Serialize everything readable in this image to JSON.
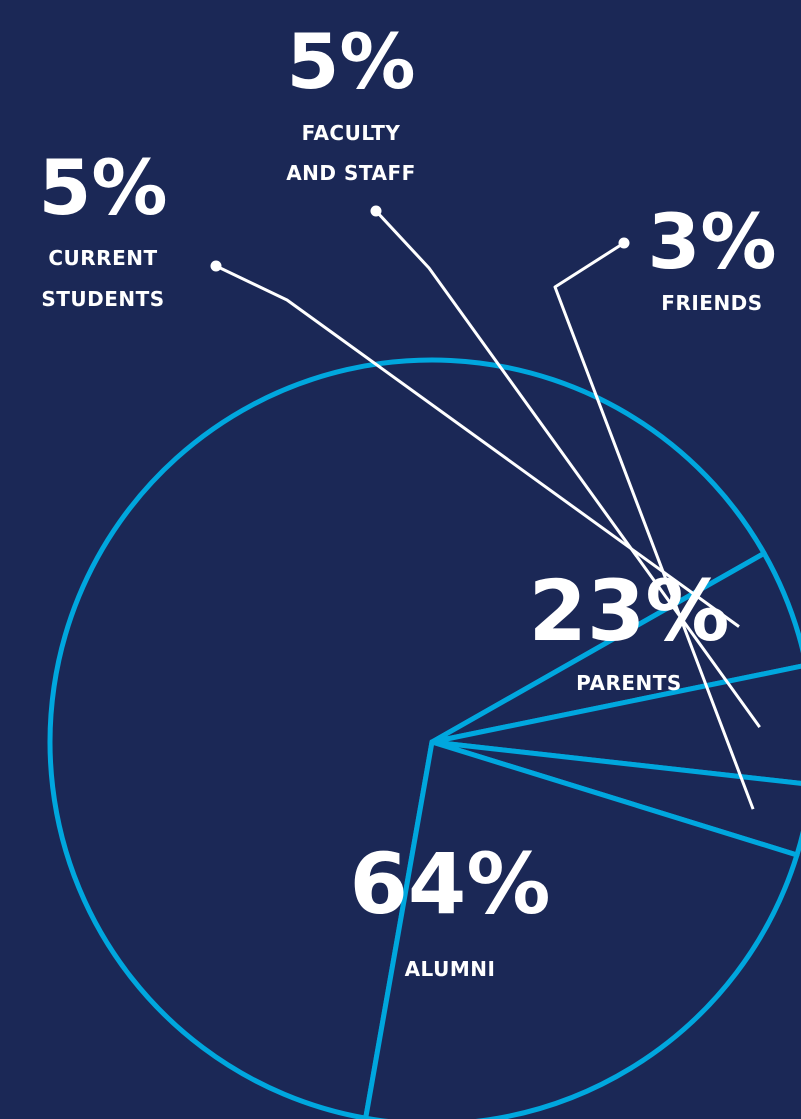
{
  "theme": {
    "background": "#1b2856",
    "pie_stroke": "#00a7de",
    "leader_line": "#ffffff",
    "text": "#ffffff"
  },
  "chart_data": {
    "type": "pie",
    "title": "",
    "slices": [
      {
        "label_lines": [
          "ALUMNI"
        ],
        "value": 64,
        "value_label": "64%"
      },
      {
        "label_lines": [
          "CURRENT",
          "STUDENTS"
        ],
        "value": 5,
        "value_label": "5%"
      },
      {
        "label_lines": [
          "FACULTY",
          "AND STAFF"
        ],
        "value": 5,
        "value_label": "5%"
      },
      {
        "label_lines": [
          "FRIENDS"
        ],
        "value": 3,
        "value_label": "3%"
      },
      {
        "label_lines": [
          "PARENTS"
        ],
        "value": 23,
        "value_label": "23%"
      }
    ]
  }
}
